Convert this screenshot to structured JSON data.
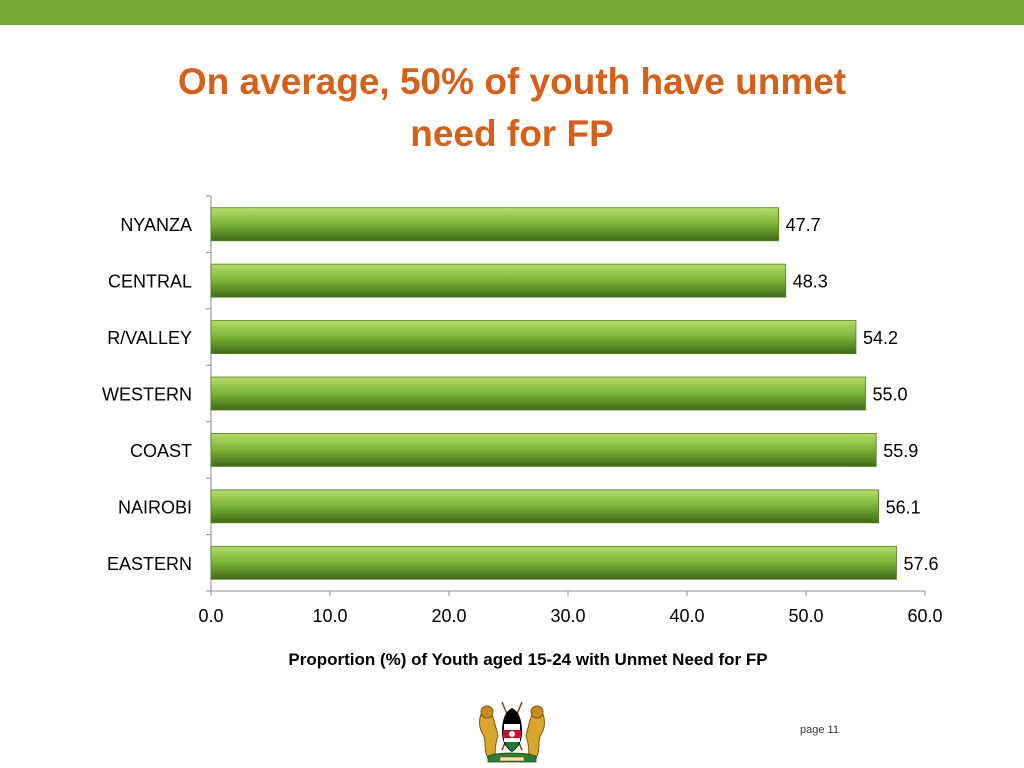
{
  "slide": {
    "title_lines": [
      "On average, 50% of youth have unmet",
      "need for FP"
    ],
    "page_number": "page 11",
    "emblem_icon": "kenya-coat-of-arms-icon",
    "colors": {
      "top_band": "#76a935",
      "title": "#d4611b",
      "bar_light": "#8dc63f",
      "bar_dark": "#3f6b18"
    }
  },
  "chart_data": {
    "type": "bar",
    "orientation": "horizontal",
    "categories": [
      "NYANZA",
      "CENTRAL",
      "R/VALLEY",
      "WESTERN",
      "COAST",
      "NAIROBI",
      "EASTERN"
    ],
    "values": [
      47.7,
      48.3,
      54.2,
      55.0,
      55.9,
      56.1,
      57.6
    ],
    "value_labels": [
      "47.7",
      "48.3",
      "54.2",
      "55.0",
      "55.9",
      "56.1",
      "57.6"
    ],
    "xlabel": "Proportion (%) of Youth aged 15-24  with Unmet Need for FP",
    "ylabel": "",
    "xlim": [
      0,
      60
    ],
    "x_ticks": [
      "0.0",
      "10.0",
      "20.0",
      "30.0",
      "40.0",
      "50.0",
      "60.0"
    ],
    "grid": false,
    "legend": "none"
  }
}
